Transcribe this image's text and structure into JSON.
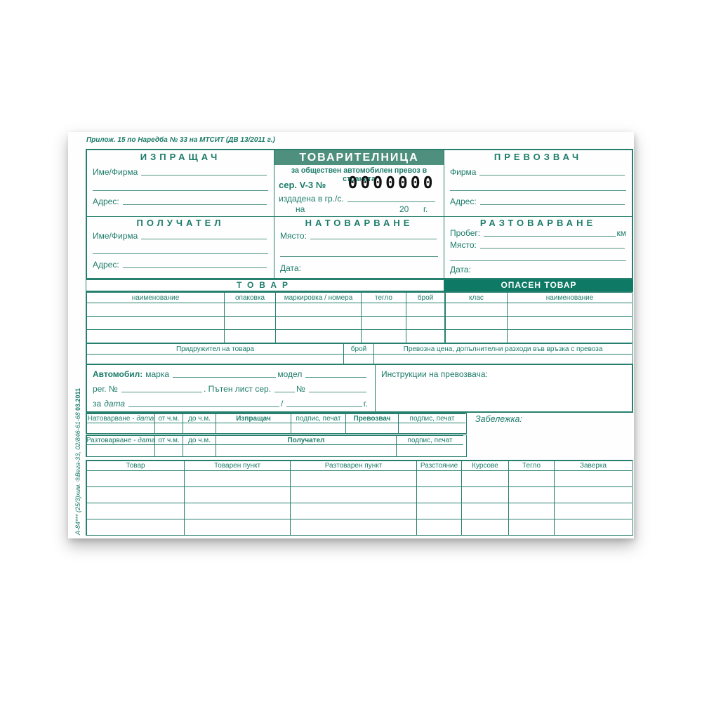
{
  "colors": {
    "ink": "#1c7c6a",
    "line": "#4f9485",
    "bord": "#27806e",
    "bar": "#4e8f7e",
    "darkbar": "#0e7a65",
    "digits": "#111111",
    "paper": "#fefefe"
  },
  "note": "Прилож. 15 по Наредба № 33 на МТСИТ (ДВ 13/2011 г.)",
  "sender": {
    "title": "ИЗПРАЩАЧ",
    "name_label": "Име/Фирма",
    "address_label": "Адрес:"
  },
  "waybill": {
    "title": "ТОВАРИТЕЛНИЦА",
    "subtitle": "за обществен автомобилен превоз в страната",
    "series_label": "сер. V-3 №",
    "serial_number": "0000000",
    "issued_label": "издадена в гр./с.",
    "on_label": "на",
    "year_prefix": "20",
    "year_suffix": "г."
  },
  "carrier": {
    "title": "ПРЕВОЗВАЧ",
    "name_label": "Фирма",
    "address_label": "Адрес:"
  },
  "receiver": {
    "title": "ПОЛУЧАТЕЛ",
    "name_label": "Име/Фирма",
    "address_label": "Адрес:"
  },
  "loading": {
    "title": "НАТОВАРВАНЕ",
    "place_label": "Място:",
    "date_label": "Дата:"
  },
  "unloading": {
    "title": "РАЗТОВАРВАНЕ",
    "mileage_label": "Пробег:",
    "mileage_unit": "км",
    "place_label": "Място:",
    "date_label": "Дата:"
  },
  "cargo": {
    "title": "ТОВАР",
    "headers": [
      "наименование",
      "опаковка",
      "маркировка / номера",
      "тегло",
      "брой"
    ]
  },
  "dangerous": {
    "title": "ОПАСЕН ТОВАР",
    "headers": [
      "клас",
      "наименование"
    ]
  },
  "escort": {
    "label": "Придружител на товара",
    "count_label": "брой",
    "price_label": "Превозна цена, допълнителни разходи във връзка с превоза"
  },
  "vehicle": {
    "label": "Автомобил:",
    "make_label": "марка",
    "model_label": "модел",
    "reg_label": "рег. №",
    "roadlist_label": ". Пътен лист сер.",
    "number_label": "№",
    "for_label": "за",
    "date_word": "дата",
    "slash": "/",
    "year_label": "г."
  },
  "instructions_label": "Инструкции на превозвача:",
  "sign": {
    "loading_prefix": "Натоварване -",
    "unloading_prefix": "Разтоварване -",
    "date_word": "дата",
    "from_label": "от ч.м.",
    "to_label": "до ч.м.",
    "sender_label": "Изпращач",
    "carrier_label": "Превозвач",
    "receiver_label": "Получател",
    "stamp_label": "подпис, печат",
    "note_label": "Забележка:"
  },
  "trips": {
    "headers": [
      "Товар",
      "Товарен пункт",
      "Разтоварен пункт",
      "Разстояние",
      "Курсове",
      "Тегло",
      "Заверка"
    ]
  },
  "imprint": {
    "edition": "03.2011",
    "printer": "А-84*** (25/3)хим. ®Вега-33, 02/846-61-68"
  }
}
